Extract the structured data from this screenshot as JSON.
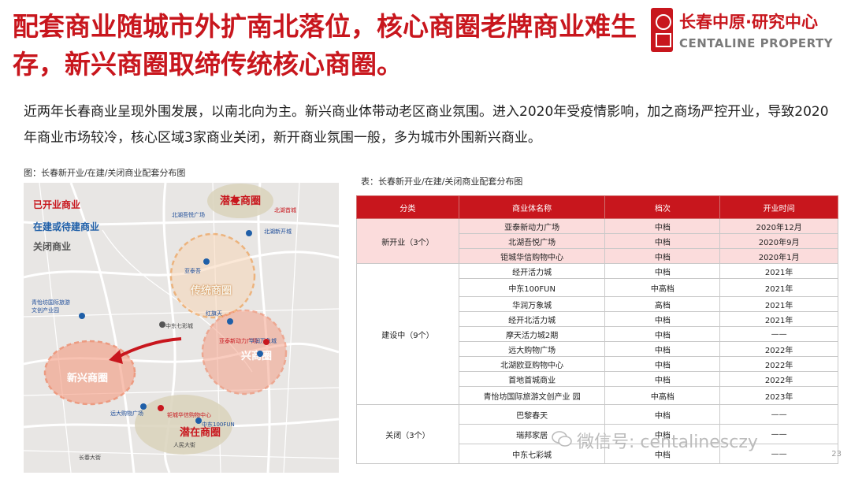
{
  "header": {
    "title": "配套商业随城市外扩南北落位，核心商圈老牌商业难生存，新兴商圈取缔传统核心商圈。",
    "logo": {
      "cn": "长春中原·研究中心",
      "en": "CENTALINE PROPERTY"
    }
  },
  "intro": "近两年长春商业呈现外围发展，以南北向为主。新兴商业体带动老区商业氛围。进入2020年受疫情影响，加之商场严控开业，导致2020年商业市场较冷，核心区域3家商业关闭，新开商业氛围一般，多为城市外围新兴商业。",
  "map": {
    "caption": "图：长春新开业/在建/关闭商业配套分布图",
    "legend": {
      "opened": "已开业商业",
      "building": "在建或待建商业",
      "closed": "关闭商业"
    },
    "zones": {
      "potential_north": "潜在商圈",
      "traditional": "传统商圈",
      "new": "新兴商圈",
      "rising": "兴商圈",
      "potential_south": "潜在商圈"
    },
    "tags": {
      "north_1": "北湖吾悦广场",
      "north_2": "北湖首城",
      "north_3": "北湖新开城",
      "t1": "亚泰吾",
      "t2": "中东七彩城",
      "t3": "红旗天",
      "r1": "亚泰新动力广场",
      "r2": "华润万象城",
      "w1": "青怡坊国际旅游文创产业园",
      "s1": "钜城华信购物中心",
      "s2": "中东100FUN",
      "s3": "远大购物广场",
      "s4": "人民大街",
      "s5": "长春大街",
      "colors": {
        "opened": "#c8161d",
        "building": "#1f5fa8",
        "closed": "#555555"
      }
    }
  },
  "table": {
    "caption": "表：长春新开业/在建/关闭商业配套分布图",
    "headers": [
      "分类",
      "商业体名称",
      "档次",
      "开业时间"
    ],
    "groups": [
      {
        "category": "新开业（3个）",
        "rows": [
          [
            "亚泰新动力广场",
            "中档",
            "2020年12月"
          ],
          [
            "北湖吾悦广场",
            "中档",
            "2020年9月"
          ],
          [
            "钜城华信购物中心",
            "中档",
            "2020年1月"
          ]
        ]
      },
      {
        "category": "建设中（9个）",
        "rows": [
          [
            "经开活力城",
            "中档",
            "2021年"
          ],
          [
            "中东100FUN",
            "中高档",
            "2021年"
          ],
          [
            "华润万象城",
            "高档",
            "2021年"
          ],
          [
            "经开北活力城",
            "中档",
            "2021年"
          ],
          [
            "摩天活力城2期",
            "中档",
            "——"
          ],
          [
            "远大购物广场",
            "中档",
            "2022年"
          ],
          [
            "北湖欧亚购物中心",
            "中档",
            "2022年"
          ],
          [
            "首地首城商业",
            "中档",
            "2022年"
          ],
          [
            "青怡坊国际旅游文创产业 园",
            "中高档",
            "2023年"
          ]
        ]
      },
      {
        "category": "关闭（3个）",
        "rows": [
          [
            "巴黎春天",
            "中档",
            "——"
          ],
          [
            "瑞邦家居",
            "中档",
            "——"
          ],
          [
            "中东七彩城",
            "中档",
            "——"
          ]
        ]
      }
    ]
  },
  "watermark": "微信号: centalinesczy",
  "page_number": "23"
}
